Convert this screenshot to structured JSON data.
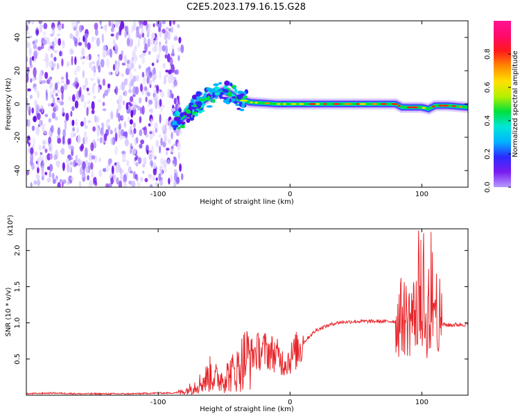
{
  "title": "C2E5.2023.179.16.15.G28",
  "chart_data": [
    {
      "type": "heatmap",
      "xlabel": "Height of straight line (km)",
      "ylabel": "Frequency (Hz)",
      "xlim": [
        -200,
        135
      ],
      "ylim": [
        -50,
        50
      ],
      "x_ticks": [
        -100,
        0,
        100
      ],
      "y_ticks": [
        -40,
        -20,
        0,
        20,
        40
      ],
      "grid": false,
      "colorbar": {
        "label": "Normalized spectral amplitude",
        "range": [
          0,
          1
        ],
        "ticks": [
          0.0,
          0.2,
          0.4,
          0.6,
          0.8
        ],
        "colors": [
          "#ffffff",
          "#b89cff",
          "#7a1cf0",
          "#2b2bff",
          "#00b3ff",
          "#00e6d8",
          "#00e03c",
          "#b5f000",
          "#ffe000",
          "#ff8a00",
          "#ff1a1a",
          "#ff0a6a",
          "#ff1493"
        ]
      },
      "noise_region_x": [
        -200,
        -87
      ],
      "ridge": {
        "x": [
          -88,
          -80,
          -70,
          -60,
          -50,
          -45,
          -40,
          -35,
          -30,
          -20,
          -10,
          0,
          20,
          40,
          60,
          80,
          85,
          90,
          100,
          105,
          110,
          120,
          135
        ],
        "frequency": [
          -12,
          -7,
          0,
          5,
          8,
          6,
          3,
          2,
          1,
          0.5,
          0,
          0,
          0,
          0,
          0,
          0,
          -2,
          -2,
          -2,
          -3,
          -1,
          -1,
          -2
        ]
      }
    },
    {
      "type": "line",
      "xlabel": "Height of straight line (km)",
      "ylabel": "SNR (10 * v/v)",
      "y_multiplier": "(x10⁴)",
      "xlim": [
        -200,
        135
      ],
      "ylim": [
        0,
        2.3
      ],
      "x_ticks": [
        -100,
        0,
        100
      ],
      "y_ticks": [
        0.5,
        1.0,
        1.5,
        2.0
      ],
      "grid": false,
      "series": [
        {
          "color": "#e8262b",
          "x": [
            -200,
            -180,
            -160,
            -140,
            -120,
            -100,
            -90,
            -80,
            -75,
            -70,
            -65,
            -60,
            -55,
            -50,
            -45,
            -40,
            -35,
            -30,
            -25,
            -20,
            -15,
            -10,
            -5,
            0,
            5,
            10,
            15,
            20,
            25,
            30,
            35,
            40,
            50,
            60,
            70,
            80,
            85,
            90,
            95,
            100,
            105,
            110,
            115,
            120,
            135
          ],
          "y": [
            0.02,
            0.03,
            0.02,
            0.02,
            0.02,
            0.03,
            0.03,
            0.05,
            0.1,
            0.15,
            0.2,
            0.3,
            0.22,
            0.25,
            0.3,
            0.35,
            0.5,
            0.55,
            0.6,
            0.62,
            0.6,
            0.55,
            0.45,
            0.5,
            0.62,
            0.72,
            0.82,
            0.9,
            0.94,
            0.97,
            1.0,
            1.01,
            1.02,
            1.02,
            1.02,
            1.02,
            1.1,
            1.05,
            1.15,
            1.0,
            1.05,
            1.3,
            0.98,
            0.97,
            0.98
          ]
        }
      ]
    }
  ]
}
